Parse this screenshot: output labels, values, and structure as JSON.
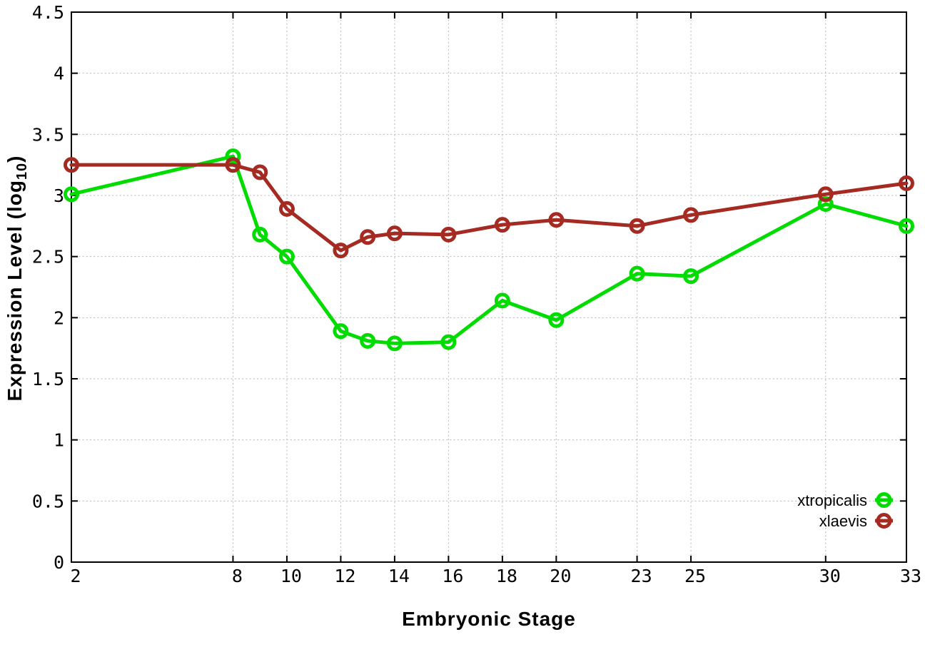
{
  "figure": {
    "background": "#ffffff",
    "border_color": "#000000",
    "grid_color": "#b5b5b5",
    "tick_color": "#000000"
  },
  "chart_data": {
    "type": "line",
    "title": "",
    "xlabel": "Embryonic Stage",
    "ylabel": "Expression Level (log10)",
    "ylabel_parts": {
      "pre": "Expression Level (log",
      "sub": "10",
      "post": ")"
    },
    "xlim": [
      2,
      33
    ],
    "ylim": [
      0,
      4.5
    ],
    "xticks": [
      2,
      8,
      10,
      12,
      14,
      16,
      18,
      20,
      23,
      25,
      30,
      33
    ],
    "xtick_labels": [
      "2",
      "8",
      "10",
      "12",
      "14",
      "16",
      "18",
      "20",
      "23",
      "25",
      "30",
      "33"
    ],
    "yticks": [
      0,
      0.5,
      1,
      1.5,
      2,
      2.5,
      3,
      3.5,
      4,
      4.5
    ],
    "ytick_labels": [
      "0",
      "0.5",
      "1",
      "1.5",
      "2",
      "2.5",
      "3",
      "3.5",
      "4",
      "4.5"
    ],
    "grid": true,
    "grid_style": "dotted",
    "legend_position": "bottom-right",
    "x": [
      2,
      8,
      9,
      10,
      12,
      13,
      14,
      16,
      18,
      20,
      23,
      25,
      30,
      33
    ],
    "series": [
      {
        "name": "xtropicalis",
        "color": "#00dc00",
        "marker": "open-circle",
        "values": [
          3.01,
          3.32,
          2.68,
          2.5,
          1.89,
          1.81,
          1.79,
          1.8,
          2.14,
          1.98,
          2.36,
          2.34,
          2.93,
          2.75
        ]
      },
      {
        "name": "xlaevis",
        "color": "#a42a22",
        "marker": "open-circle",
        "values": [
          3.25,
          3.25,
          3.19,
          2.89,
          2.55,
          2.66,
          2.69,
          2.68,
          2.76,
          2.8,
          2.75,
          2.84,
          3.01,
          3.1
        ]
      }
    ]
  }
}
